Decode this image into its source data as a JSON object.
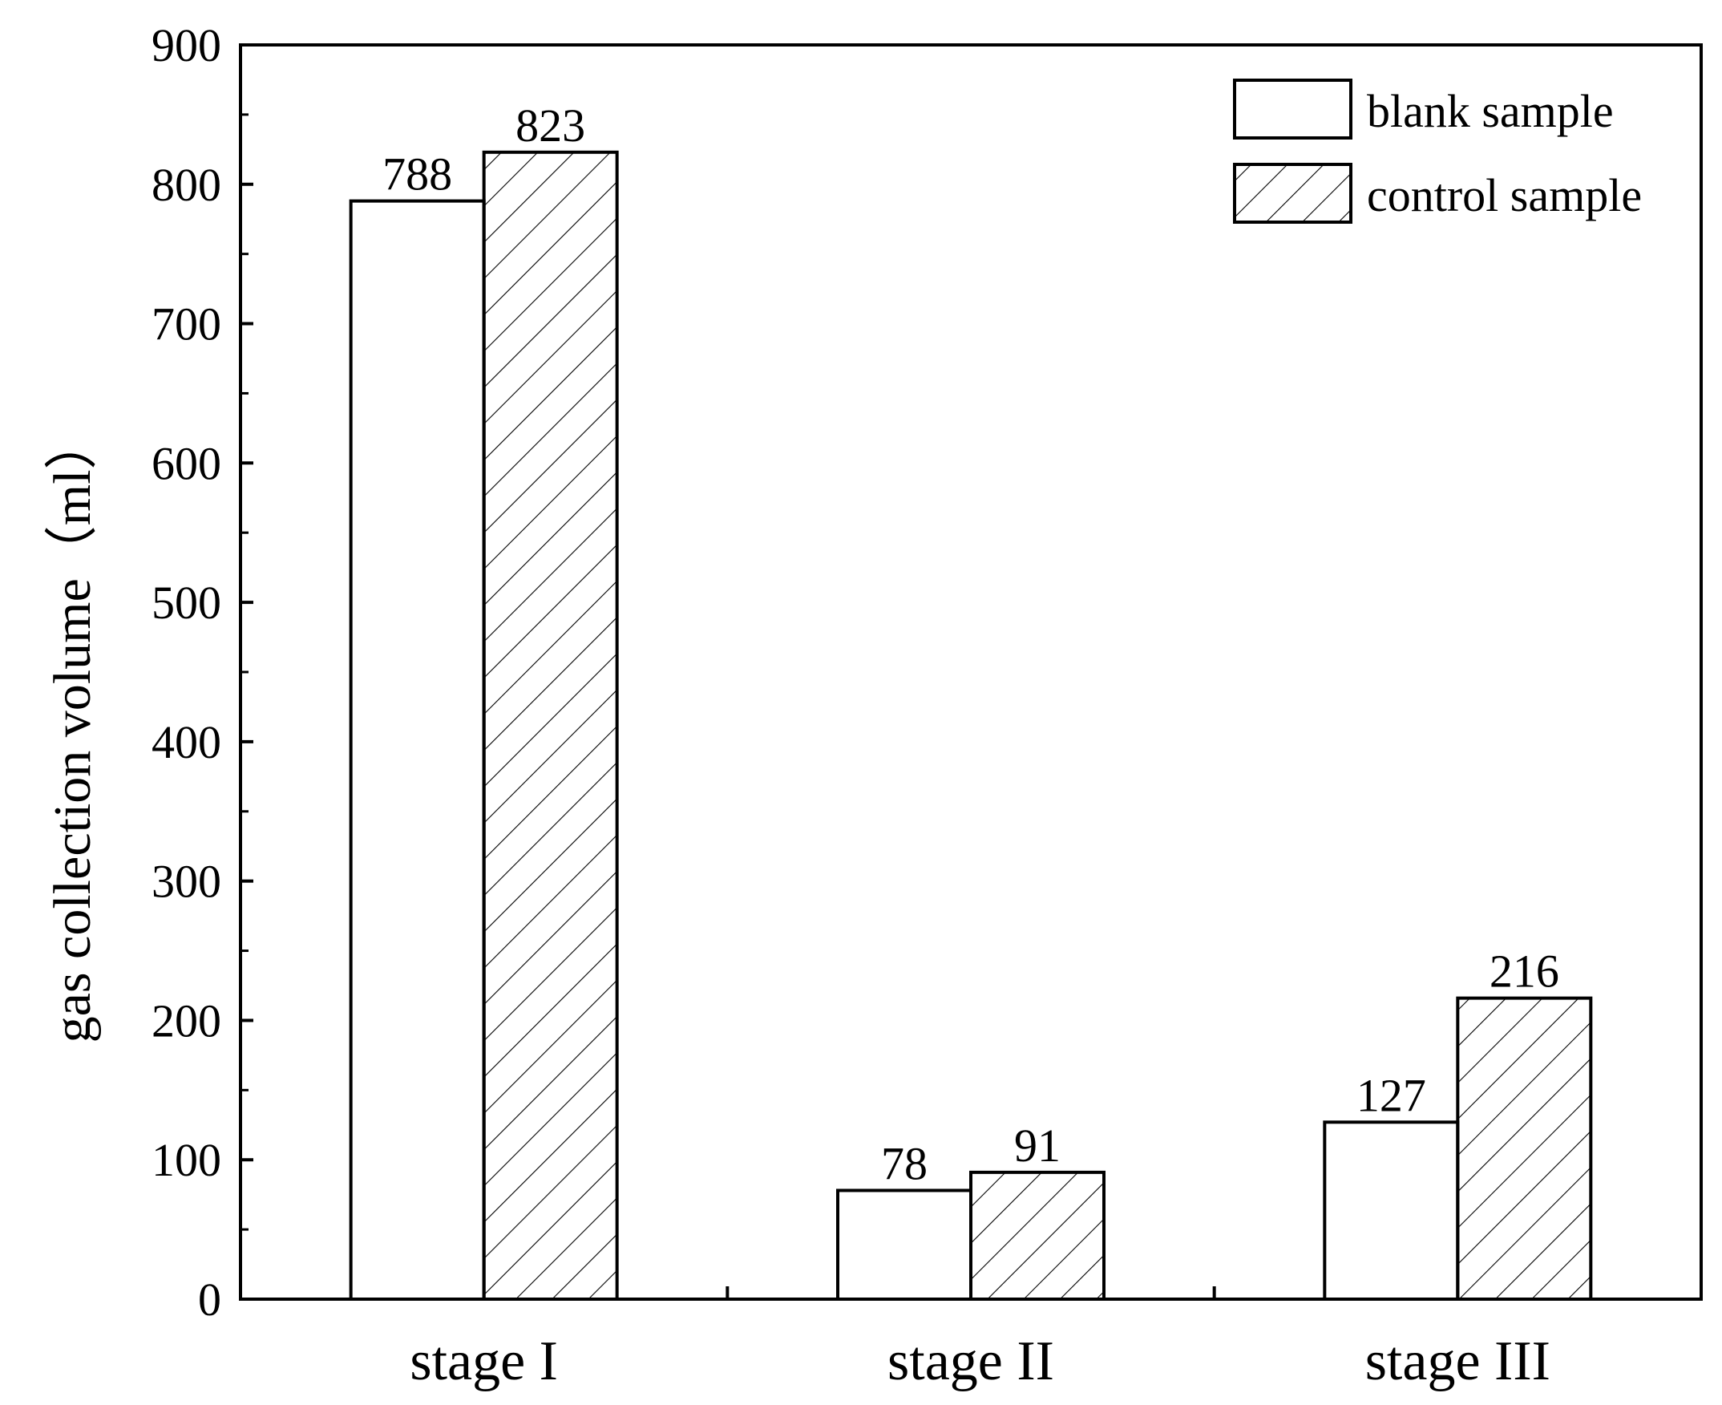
{
  "chart_data": {
    "type": "bar",
    "title": "",
    "xlabel": "",
    "ylabel": "gas collection volume（ml）",
    "categories": [
      "stage I",
      "stage II",
      "stage III"
    ],
    "series": [
      {
        "name": "blank sample",
        "values": [
          788,
          78,
          127
        ],
        "fill": "none"
      },
      {
        "name": "control sample",
        "values": [
          823,
          91,
          216
        ],
        "fill": "diagonal-hatch"
      }
    ],
    "ylim": [
      0,
      900
    ],
    "yticks": [
      0,
      100,
      200,
      300,
      400,
      500,
      600,
      700,
      800,
      900
    ],
    "ytick_labels": [
      "0",
      "100",
      "200",
      "300",
      "400",
      "500",
      "600",
      "700",
      "800",
      "900"
    ],
    "data_labels": [
      [
        "788",
        "78",
        "127"
      ],
      [
        "823",
        "91",
        "216"
      ]
    ],
    "legend_position": "top-right",
    "grid": false
  },
  "colors": {
    "stroke": "#000000",
    "background": "#ffffff"
  }
}
